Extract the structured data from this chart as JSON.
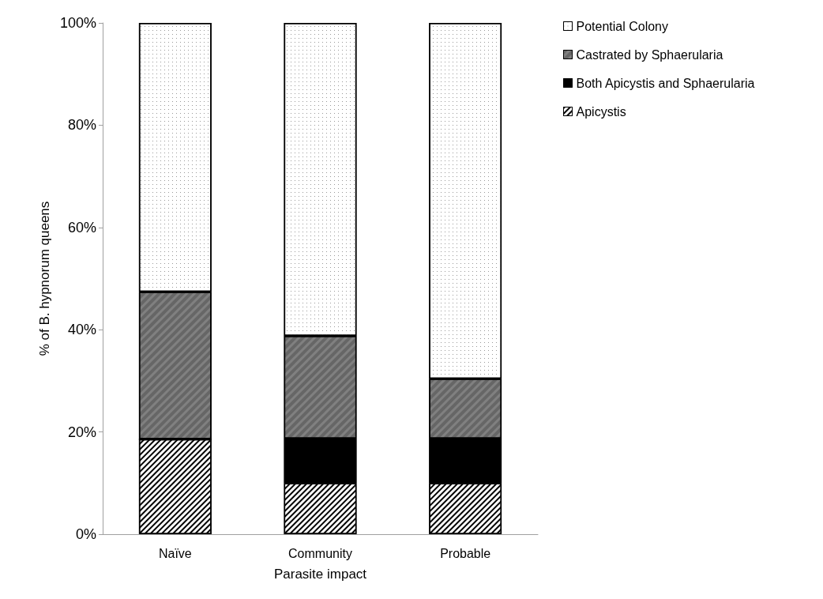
{
  "chart_data": {
    "type": "bar",
    "stacked": true,
    "xlabel": "Parasite impact",
    "ylabel": "% of B. hypnorum queens",
    "categories": [
      "Naïve",
      "Community",
      "Probable"
    ],
    "series": [
      {
        "name": "Apicystis",
        "color": "#ffffff",
        "values": [
          18.6,
          10.0,
          10.0
        ]
      },
      {
        "name": "Both Apicystis and Sphaerularia",
        "color": "#000000",
        "values": [
          0,
          8.7,
          8.7
        ]
      },
      {
        "name": "Castrated by Sphaerularia",
        "color": "#808080",
        "values": [
          28.8,
          20.1,
          11.7
        ]
      },
      {
        "name": "Potential Colony",
        "color": "#ffffff",
        "values": [
          52.6,
          61.2,
          69.6
        ]
      }
    ],
    "ylim": [
      0,
      100
    ],
    "yticks": [
      {
        "value": 0,
        "label": "0%"
      },
      {
        "value": 20,
        "label": "20%"
      },
      {
        "value": 40,
        "label": "40%"
      },
      {
        "value": 60,
        "label": "60%"
      },
      {
        "value": 80,
        "label": "80%"
      },
      {
        "value": 100,
        "label": "100%"
      }
    ],
    "grid": false,
    "legend": "top right"
  }
}
